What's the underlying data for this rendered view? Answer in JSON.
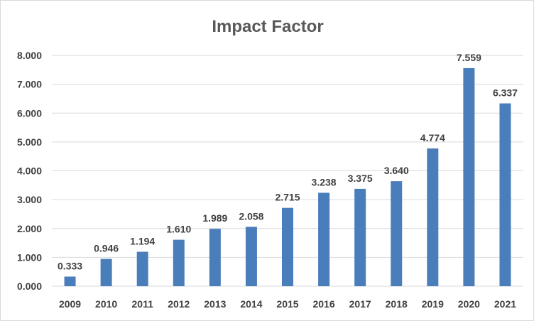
{
  "chart_data": {
    "type": "bar",
    "title": "Impact Factor",
    "categories": [
      "2009",
      "2010",
      "2011",
      "2012",
      "2013",
      "2014",
      "2015",
      "2016",
      "2017",
      "2018",
      "2019",
      "2020",
      "2021"
    ],
    "values": [
      0.333,
      0.946,
      1.194,
      1.61,
      1.989,
      2.058,
      2.715,
      3.238,
      3.375,
      3.64,
      4.774,
      7.559,
      6.337
    ],
    "data_labels": [
      "0.333",
      "0.946",
      "1.194",
      "1.610",
      "1.989",
      "2.058",
      "2.715",
      "3.238",
      "3.375",
      "3.640",
      "4.774",
      "7.559",
      "6.337"
    ],
    "y_ticks": [
      "0.000",
      "1.000",
      "2.000",
      "3.000",
      "4.000",
      "5.000",
      "6.000",
      "7.000",
      "8.000"
    ],
    "xlabel": "",
    "ylabel": "",
    "ylim": [
      0,
      8
    ],
    "grid": true,
    "legend": "none",
    "colors": {
      "bar": "#4a7ebb",
      "grid": "#d9d9d9",
      "text": "#404040",
      "title": "#595959"
    }
  }
}
